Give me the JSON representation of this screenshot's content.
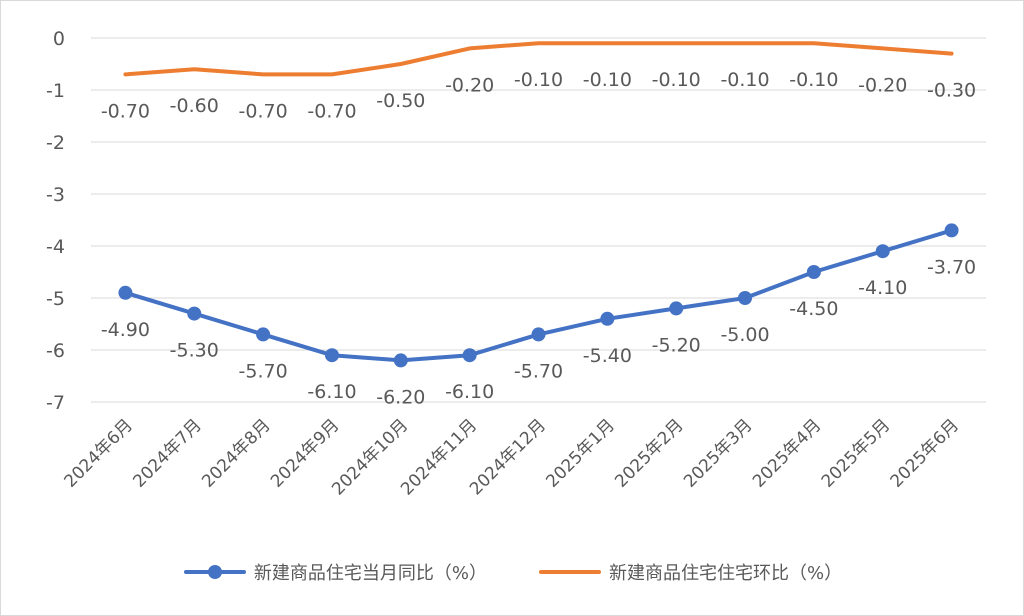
{
  "chart_data": {
    "type": "line",
    "title": "",
    "xlabel": "",
    "ylabel": "",
    "categories": [
      "2024年6月",
      "2024年7月",
      "2024年8月",
      "2024年9月",
      "2024年10月",
      "2024年11月",
      "2024年12月",
      "2025年1月",
      "2025年2月",
      "2025年3月",
      "2025年4月",
      "2025年5月",
      "2025年6月"
    ],
    "ylim": [
      -7,
      0
    ],
    "yticks": [
      "0",
      "-1",
      "-2",
      "-3",
      "-4",
      "-5",
      "-6",
      "-7"
    ],
    "grid": true,
    "legend_position": "bottom",
    "series": [
      {
        "name": "新建商品住宅当月同比（%）",
        "color": "#4472C4",
        "marker": "circle",
        "values": [
          -4.9,
          -5.3,
          -5.7,
          -6.1,
          -6.2,
          -6.1,
          -5.7,
          -5.4,
          -5.2,
          -5.0,
          -4.5,
          -4.1,
          -3.7
        ],
        "labels": [
          "-4.90",
          "-5.30",
          "-5.70",
          "-6.10",
          "-6.20",
          "-6.10",
          "-5.70",
          "-5.40",
          "-5.20",
          "-5.00",
          "-4.50",
          "-4.10",
          "-3.70"
        ]
      },
      {
        "name": "新建商品住宅住宅环比（%）",
        "color": "#ED7D31",
        "marker": "none",
        "values": [
          -0.7,
          -0.6,
          -0.7,
          -0.7,
          -0.5,
          -0.2,
          -0.1,
          -0.1,
          -0.1,
          -0.1,
          -0.1,
          -0.2,
          -0.3
        ],
        "labels": [
          "-0.70",
          "-0.60",
          "-0.70",
          "-0.70",
          "-0.50",
          "-0.20",
          "-0.10",
          "-0.10",
          "-0.10",
          "-0.10",
          "-0.10",
          "-0.20",
          "-0.30"
        ]
      }
    ]
  }
}
